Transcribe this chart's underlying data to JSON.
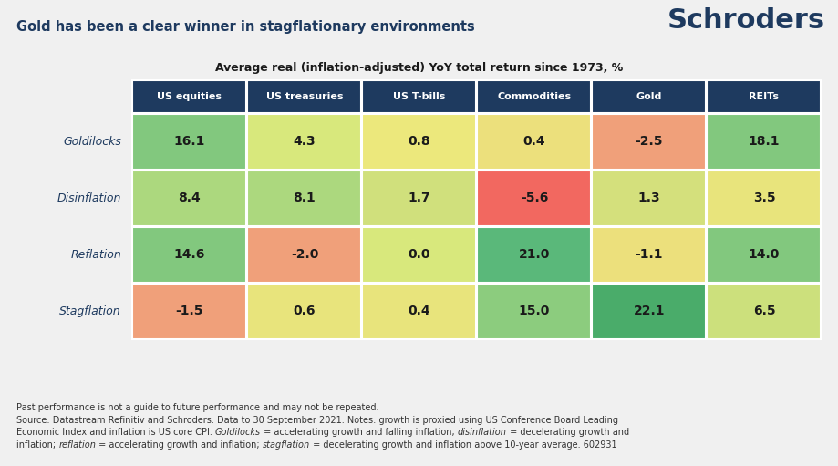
{
  "title": "Gold has been a clear winner in stagflationary environments",
  "subtitle": "Average real (inflation-adjusted) YoY total return since 1973, %",
  "schroders_text": "Schroders",
  "columns": [
    "US equities",
    "US treasuries",
    "US T-bills",
    "Commodities",
    "Gold",
    "REITs"
  ],
  "rows": [
    "Goldilocks",
    "Disinflation",
    "Reflation",
    "Stagflation"
  ],
  "values": [
    [
      16.1,
      4.3,
      0.8,
      0.4,
      -2.5,
      18.1
    ],
    [
      8.4,
      8.1,
      1.7,
      -5.6,
      1.3,
      3.5
    ],
    [
      14.6,
      -2.0,
      0.0,
      21.0,
      -1.1,
      14.0
    ],
    [
      -1.5,
      0.6,
      0.4,
      15.0,
      22.1,
      6.5
    ]
  ],
  "cell_colors": [
    [
      "#82c87e",
      "#d8e87c",
      "#ece87c",
      "#ece07c",
      "#f0a07a",
      "#82c87e"
    ],
    [
      "#acd87e",
      "#acd87e",
      "#d0e07c",
      "#f26860",
      "#d4e07c",
      "#e8e47c"
    ],
    [
      "#82c87e",
      "#f0a07a",
      "#d8e87c",
      "#5ab87a",
      "#ece07c",
      "#82c87e"
    ],
    [
      "#f0a07a",
      "#e8e47c",
      "#e8e47c",
      "#8ccc7e",
      "#4aac6a",
      "#cce07c"
    ]
  ],
  "header_bg": "#1e3a5f",
  "header_text_color": "#ffffff",
  "row_label_color": "#1e3a5f",
  "value_text_color": "#1a1a1a",
  "bg_color": "#f0f0f0",
  "footnote_lines": [
    "Past performance is not a guide to future performance and may not be repeated.",
    "Source: Datastream Refinitiv and Schroders. Data to 30 September 2021. Notes: growth is proxied using US Conference Board Leading",
    "Economic Index and inflation is US core CPI. {i:Goldilocks} = accelerating growth and falling inflation; {i:disinflation} = decelerating growth and",
    "inflation; {i:reflation} = accelerating growth and inflation; {i:stagflation} = decelerating growth and inflation above 10-year average. 602931"
  ]
}
